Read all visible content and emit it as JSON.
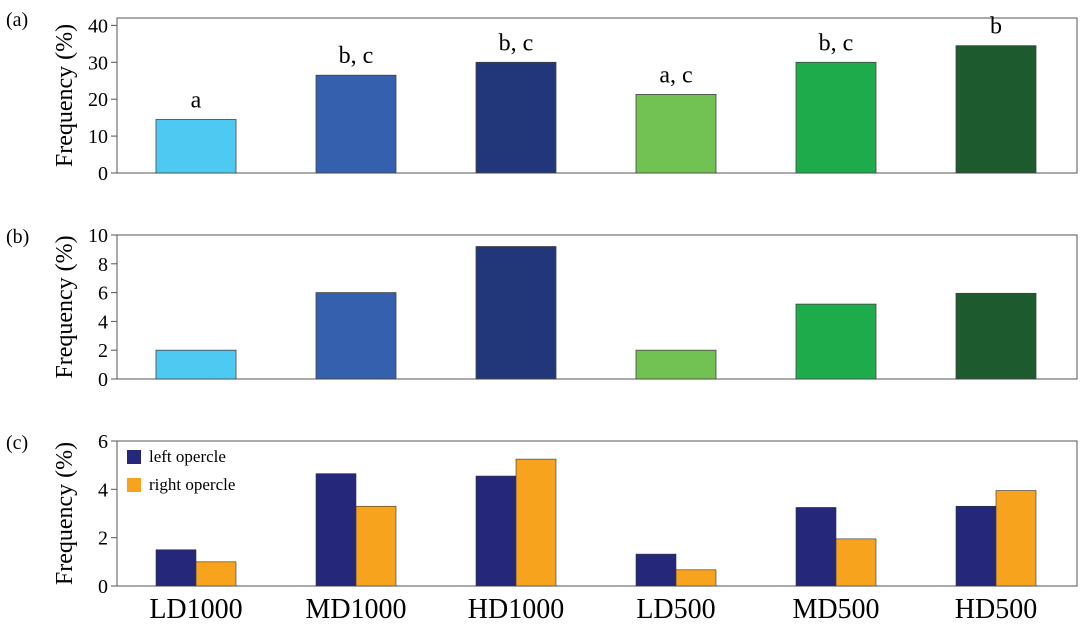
{
  "chart_data": [
    {
      "panel": "(a)",
      "type": "bar",
      "ylabel": "Frequency (%)",
      "ylim": [
        0,
        42
      ],
      "yticks": [
        "0",
        "10",
        "20",
        "30",
        "40"
      ],
      "categories": [
        "LD1000",
        "MD1000",
        "HD1000",
        "LD500",
        "MD500",
        "HD500"
      ],
      "values": [
        14.5,
        26.5,
        30,
        21.3,
        30,
        34.5
      ],
      "bar_colors": [
        "#4ec9f2",
        "#3560ae",
        "#22377a",
        "#72c153",
        "#1eab4b",
        "#1d5a2d"
      ],
      "annotations": [
        "a",
        "b, c",
        "b, c",
        "a, c",
        "b, c",
        "b"
      ]
    },
    {
      "panel": "(b)",
      "type": "bar",
      "ylabel": "Frequency (%)",
      "ylim": [
        0,
        10
      ],
      "yticks": [
        "0",
        "2",
        "4",
        "6",
        "8",
        "10"
      ],
      "categories": [
        "LD1000",
        "MD1000",
        "HD1000",
        "LD500",
        "MD500",
        "HD500"
      ],
      "values": [
        2,
        6,
        9.2,
        2,
        5.2,
        5.95
      ],
      "bar_colors": [
        "#4ec9f2",
        "#3560ae",
        "#22377a",
        "#72c153",
        "#1eab4b",
        "#1d5a2d"
      ]
    },
    {
      "panel": "(c)",
      "type": "bar",
      "ylabel": "Frequency (%)",
      "ylim": [
        0,
        6
      ],
      "yticks": [
        "0",
        "2",
        "4",
        "6"
      ],
      "categories": [
        "LD1000",
        "MD1000",
        "HD1000",
        "LD500",
        "MD500",
        "HD500"
      ],
      "legend_position": "top-left",
      "series": [
        {
          "name": "left opercle",
          "color": "#25287a",
          "values": [
            1.5,
            4.65,
            4.55,
            1.32,
            3.25,
            3.3
          ]
        },
        {
          "name": "right opercle",
          "color": "#f8a31e",
          "values": [
            1,
            3.3,
            5.25,
            0.67,
            1.95,
            3.95
          ]
        }
      ]
    }
  ]
}
